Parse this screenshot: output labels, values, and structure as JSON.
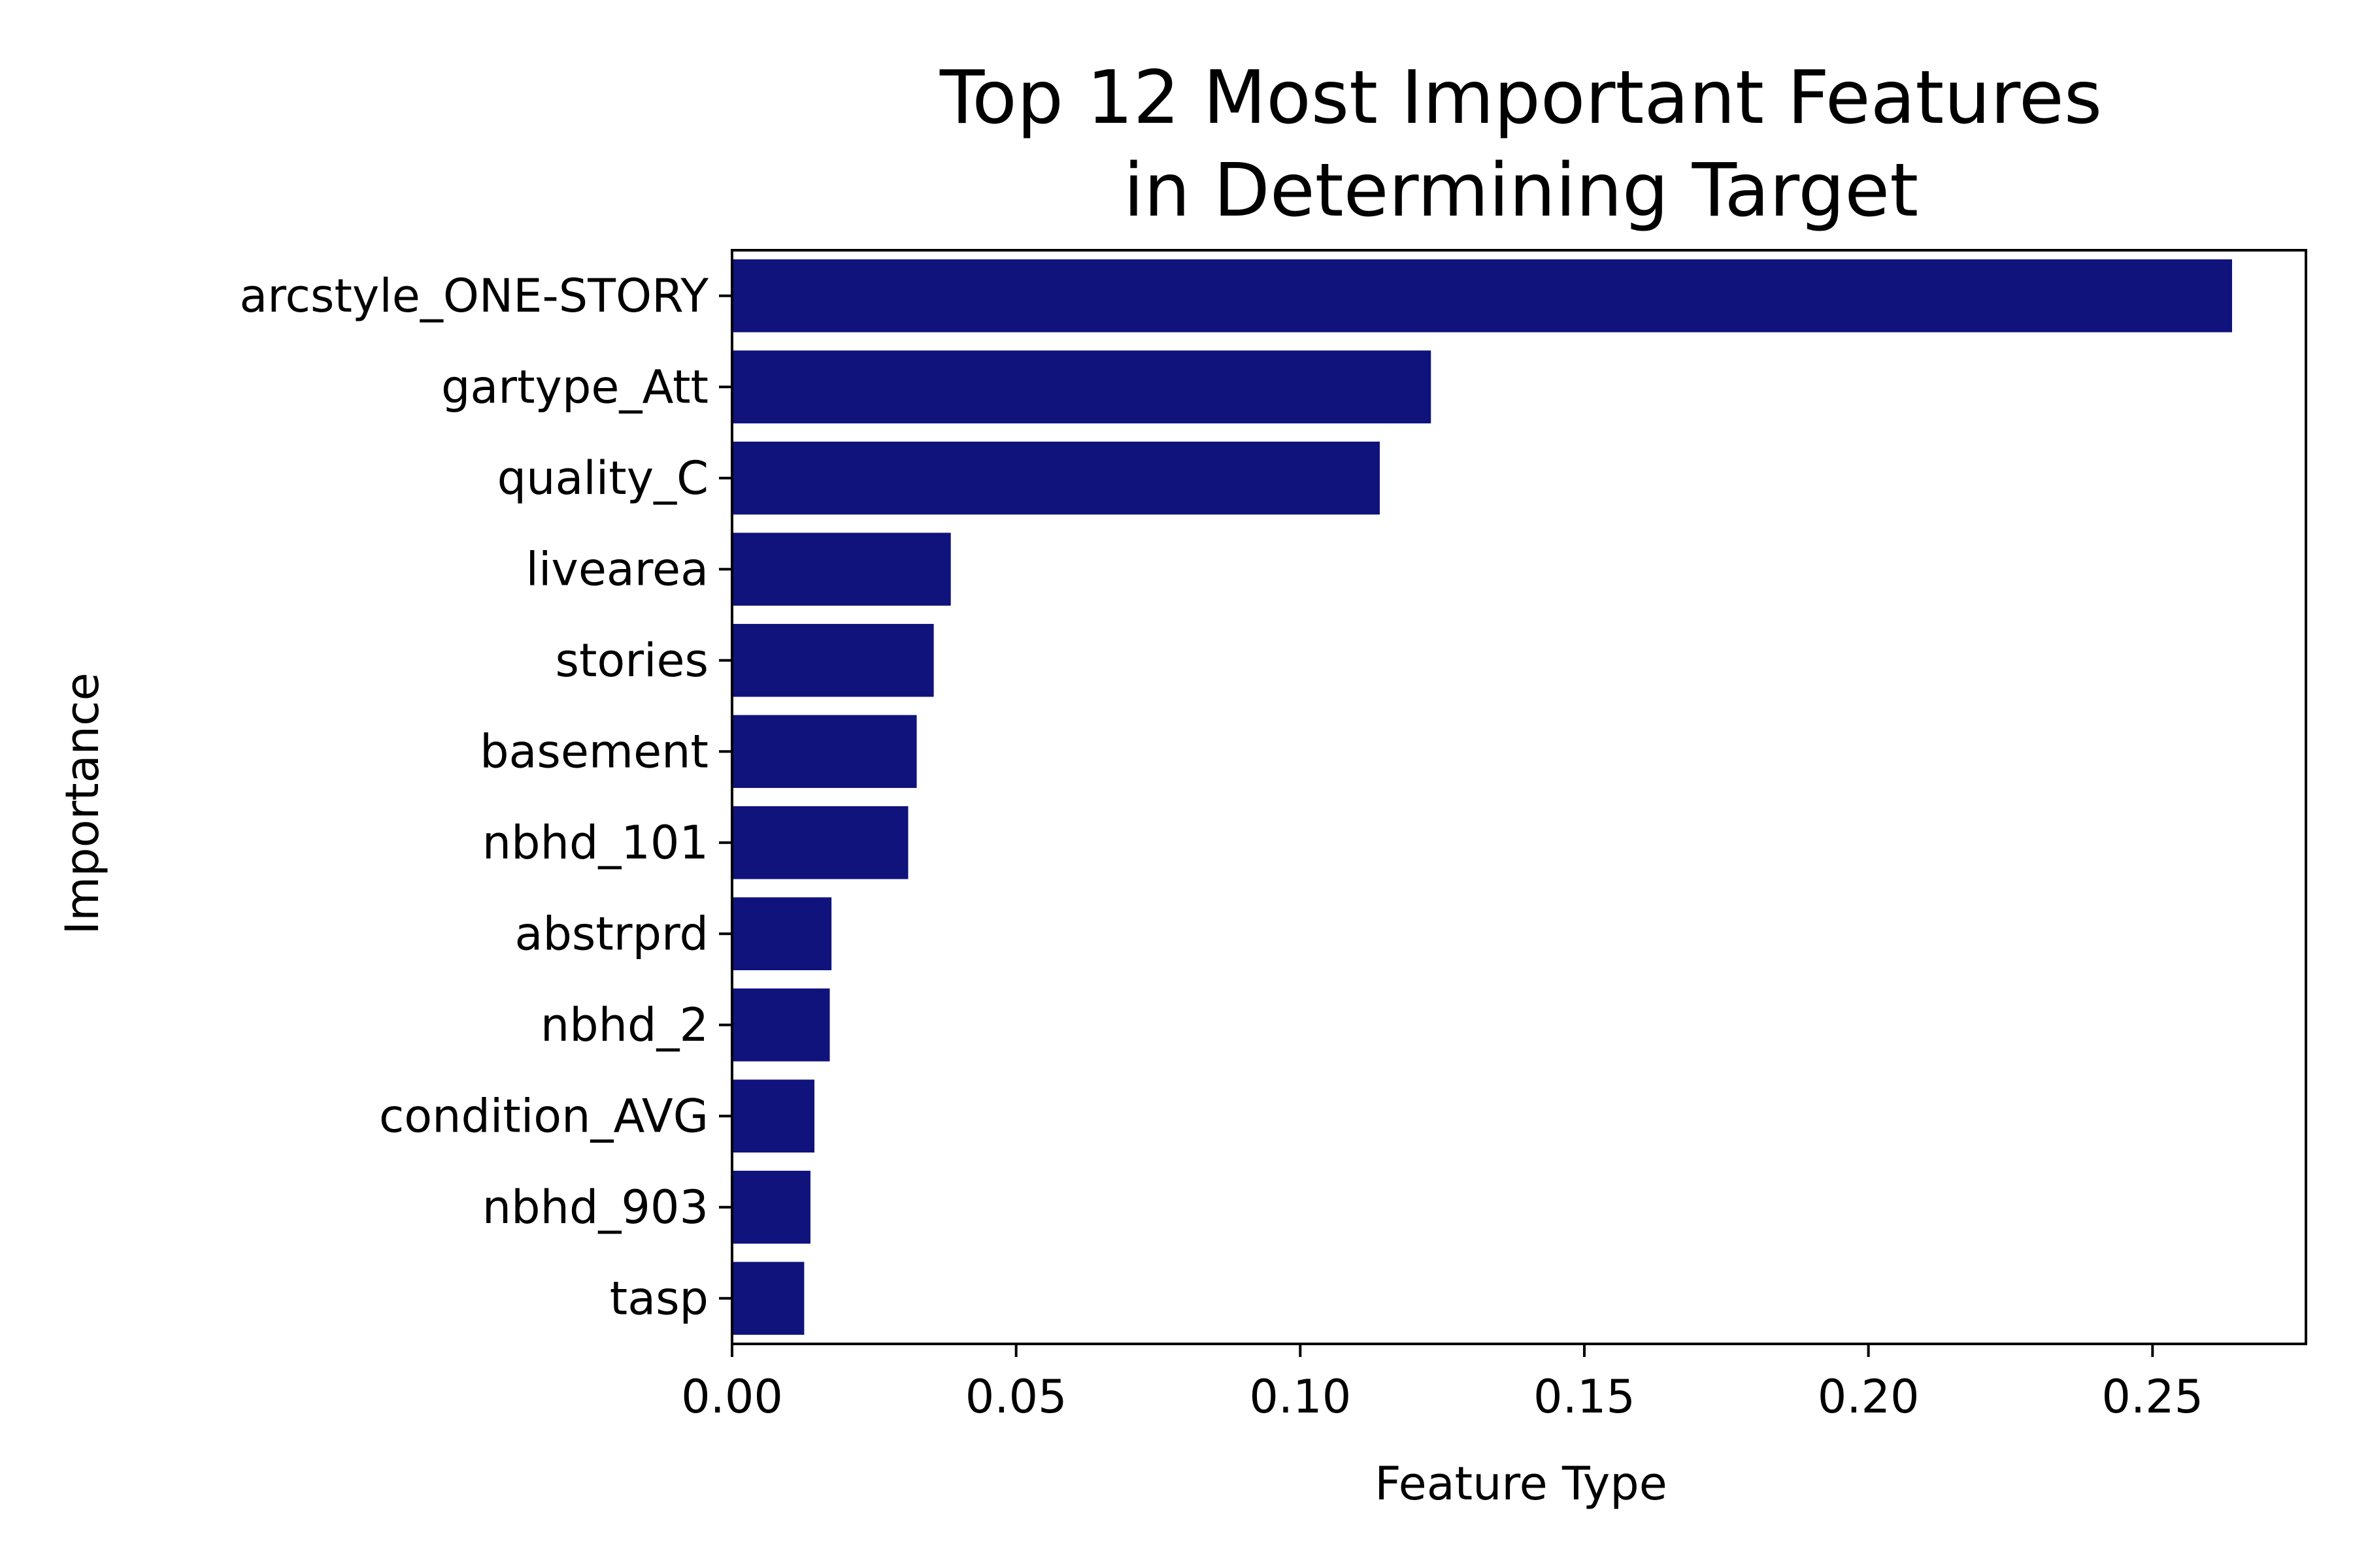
{
  "chart_data": {
    "type": "bar",
    "orientation": "horizontal",
    "title_lines": [
      "Top 12 Most Important Features",
      "in Determining Target"
    ],
    "xlabel": "Feature Type",
    "ylabel": "Importance",
    "xlim": [
      0,
      0.277
    ],
    "xticks": [
      0.0,
      0.05,
      0.1,
      0.15,
      0.2,
      0.25
    ],
    "xtick_labels": [
      "0.00",
      "0.05",
      "0.10",
      "0.15",
      "0.20",
      "0.25"
    ],
    "categories": [
      "arcstyle_ONE-STORY",
      "gartype_Att",
      "quality_C",
      "livearea",
      "stories",
      "basement",
      "nbhd_101",
      "abstrprd",
      "nbhd_2",
      "condition_AVG",
      "nbhd_903",
      "tasp"
    ],
    "values": [
      0.264,
      0.123,
      0.114,
      0.0385,
      0.0355,
      0.0325,
      0.031,
      0.0175,
      0.0172,
      0.0145,
      0.0138,
      0.0127
    ],
    "bar_color": "#10137c",
    "grid": false,
    "legend": "none"
  }
}
